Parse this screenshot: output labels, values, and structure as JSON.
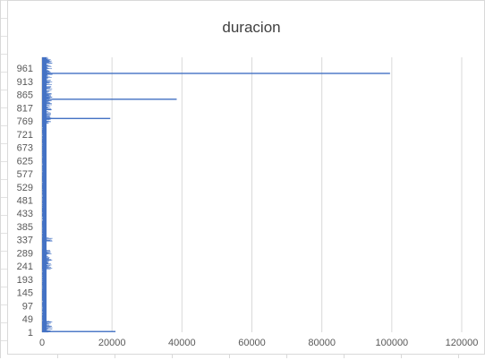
{
  "chart_data": {
    "type": "bar",
    "orientation": "horizontal",
    "title": "duracion",
    "xlabel": "",
    "ylabel": "",
    "xlim": [
      0,
      120000
    ],
    "x_ticks": [
      0,
      20000,
      40000,
      60000,
      80000,
      100000,
      120000
    ],
    "category_count": 1000,
    "category_tick_labels": [
      "1",
      "49",
      "97",
      "145",
      "193",
      "241",
      "289",
      "337",
      "385",
      "433",
      "481",
      "529",
      "577",
      "625",
      "673",
      "721",
      "769",
      "817",
      "865",
      "913",
      "961"
    ],
    "grid": "vertical",
    "series_color": "#4472c4",
    "notable_values": [
      {
        "category": 942,
        "value": 99500
      },
      {
        "category": 848,
        "value": 38500
      },
      {
        "category": 778,
        "value": 19500
      },
      {
        "category": 3,
        "value": 21000
      }
    ],
    "baseline_note": "most durations are small (under about 3000)"
  }
}
